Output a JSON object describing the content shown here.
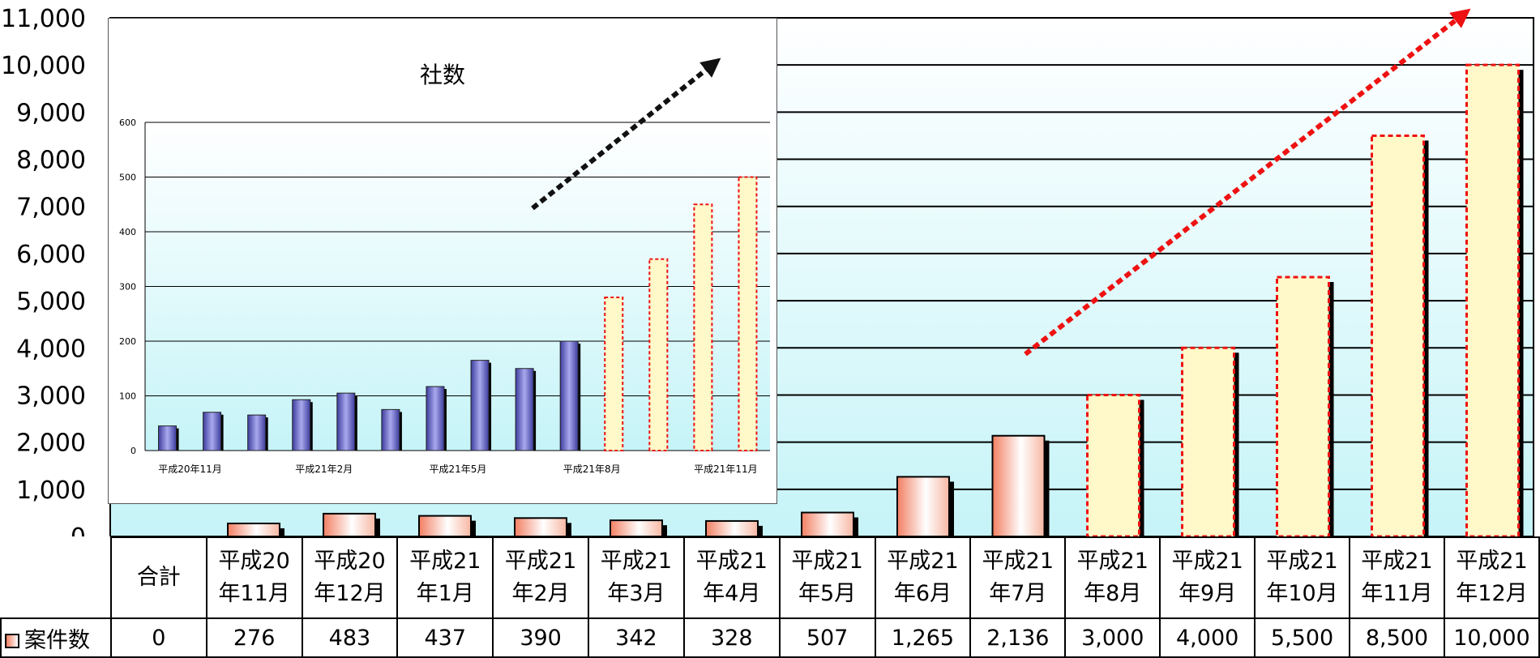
{
  "chart_data": [
    {
      "type": "bar",
      "title": "",
      "xlabel": "",
      "ylabel": "",
      "ylim": [
        0,
        11000
      ],
      "yticks": [
        "0",
        "1,000",
        "2,000",
        "3,000",
        "4,000",
        "5,000",
        "6,000",
        "7,000",
        "8,000",
        "9,000",
        "10,000",
        "11,000"
      ],
      "grid": true,
      "legend": "in data table",
      "categories": [
        {
          "line1": "合計",
          "line2": ""
        },
        {
          "line1": "平成20",
          "line2": "年11月"
        },
        {
          "line1": "平成20",
          "line2": "年12月"
        },
        {
          "line1": "平成21",
          "line2": "年1月"
        },
        {
          "line1": "平成21",
          "line2": "年2月"
        },
        {
          "line1": "平成21",
          "line2": "年3月"
        },
        {
          "line1": "平成21",
          "line2": "年4月"
        },
        {
          "line1": "平成21",
          "line2": "年5月"
        },
        {
          "line1": "平成21",
          "line2": "年6月"
        },
        {
          "line1": "平成21",
          "line2": "年7月"
        },
        {
          "line1": "平成21",
          "line2": "年8月"
        },
        {
          "line1": "平成21",
          "line2": "年9月"
        },
        {
          "line1": "平成21",
          "line2": "年10月"
        },
        {
          "line1": "平成21",
          "line2": "年11月"
        },
        {
          "line1": "平成21",
          "line2": "年12月"
        }
      ],
      "series": [
        {
          "name": "案件数",
          "values": [
            0,
            276,
            483,
            437,
            390,
            342,
            328,
            507,
            1265,
            2136,
            3000,
            4000,
            5500,
            8500,
            10000
          ],
          "labels": [
            "0",
            "276",
            "483",
            "437",
            "390",
            "342",
            "328",
            "507",
            "1,265",
            "2,136",
            "3,000",
            "4,000",
            "5,500",
            "8,500",
            "10,000"
          ],
          "projected": [
            false,
            false,
            false,
            false,
            false,
            false,
            false,
            false,
            false,
            false,
            true,
            true,
            true,
            true,
            true
          ]
        }
      ],
      "trend_arrow_color": "#ee1111",
      "bar_color": "#f27f62",
      "projected_color": "#fff8c8"
    },
    {
      "type": "bar",
      "title": "社数",
      "ylim": [
        0,
        600
      ],
      "yticks": [
        "0",
        "100",
        "200",
        "300",
        "400",
        "500",
        "600"
      ],
      "grid": true,
      "x_tick_labels": [
        "平成20年11月",
        "平成21年2月",
        "平成21年5月",
        "平成21年8月",
        "平成21年11月"
      ],
      "x_tick_indices": [
        0,
        3,
        6,
        9,
        12
      ],
      "values": [
        45,
        70,
        65,
        93,
        105,
        75,
        117,
        165,
        150,
        200,
        280,
        350,
        450,
        500
      ],
      "projected": [
        false,
        false,
        false,
        false,
        false,
        false,
        false,
        false,
        false,
        false,
        true,
        true,
        true,
        true
      ],
      "bar_color": "#5e5ec6",
      "projected_color": "#fff8c8",
      "trend_arrow_color": "#111111"
    }
  ]
}
